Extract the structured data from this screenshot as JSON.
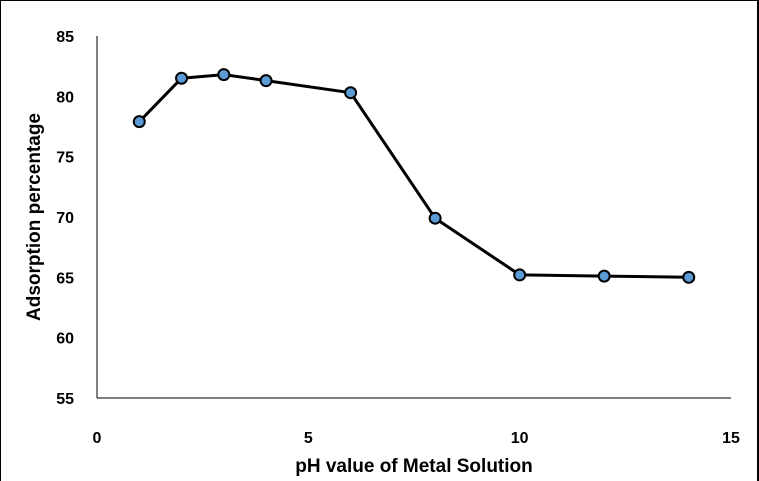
{
  "chart_data": {
    "type": "line",
    "title": "",
    "xlabel": "pH value of Metal Solution",
    "ylabel": "Adsorption percentage",
    "xlim": [
      0,
      15
    ],
    "ylim": [
      55,
      85
    ],
    "x_ticks": [
      0,
      5,
      10,
      15
    ],
    "y_ticks": [
      55,
      60,
      65,
      70,
      75,
      80,
      85
    ],
    "grid": false,
    "legend": "none",
    "series": [
      {
        "x": [
          1,
          2,
          3,
          4,
          6,
          8,
          10,
          12,
          14
        ],
        "y": [
          77.9,
          81.5,
          81.8,
          81.3,
          80.3,
          69.9,
          65.2,
          65.1,
          65.0
        ],
        "line_color": "#000000",
        "marker_color": "#5B9BD5",
        "marker_edge_color": "#000000"
      }
    ]
  }
}
